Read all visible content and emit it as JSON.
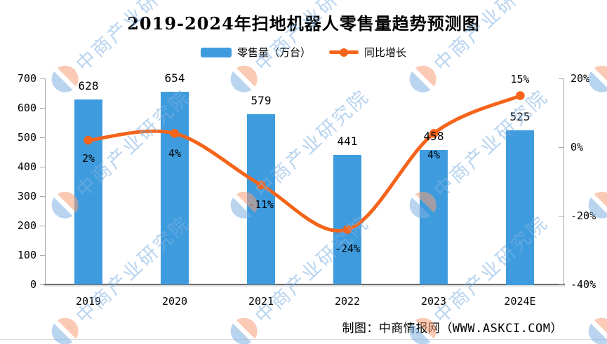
{
  "header": {
    "title": "2019-2024年扫地机器人零售量趋势预测图"
  },
  "legend": [
    {
      "type": "bar",
      "label": "零售量（万台）",
      "color": "#3E9CDE"
    },
    {
      "type": "line",
      "label": "同比增长",
      "color": "#F5641A"
    }
  ],
  "footer": {
    "credit": "制图：中商情报网（WWW.ASKCI.COM）"
  },
  "watermark": {
    "text": "中商产业研究院"
  },
  "chart_data": {
    "type": "bar+line",
    "title": "2019-2024年扫地机器人零售量趋势预测图",
    "categories": [
      "2019",
      "2020",
      "2021",
      "2022",
      "2023",
      "2024E"
    ],
    "series": [
      {
        "name": "零售量（万台）",
        "type": "bar",
        "axis": "left",
        "values": [
          628,
          654,
          579,
          441,
          458,
          525
        ],
        "labels": [
          "628",
          "654",
          "579",
          "441",
          "458",
          "525"
        ],
        "color": "#3E9CDE"
      },
      {
        "name": "同比增长",
        "type": "line",
        "axis": "right",
        "values": [
          2,
          4,
          -11,
          -24,
          4,
          15
        ],
        "labels": [
          "2%",
          "4%",
          "-11%",
          "-24%",
          "4%",
          "15%"
        ],
        "color": "#F5641A",
        "label_offsets": [
          26,
          29,
          28,
          27,
          31,
          -24
        ]
      }
    ],
    "left_axis": {
      "min": 0,
      "max": 700,
      "ticks": [
        700,
        600,
        500,
        400,
        300,
        200,
        100,
        0
      ]
    },
    "right_axis": {
      "min": -40,
      "max": 20,
      "ticks": [
        20,
        0,
        -20,
        -40
      ],
      "suffix": "%"
    },
    "grid": false,
    "legend_position": "top",
    "xlabel": "",
    "ylabel_left": "零售量（万台）",
    "ylabel_right": "同比增长"
  }
}
